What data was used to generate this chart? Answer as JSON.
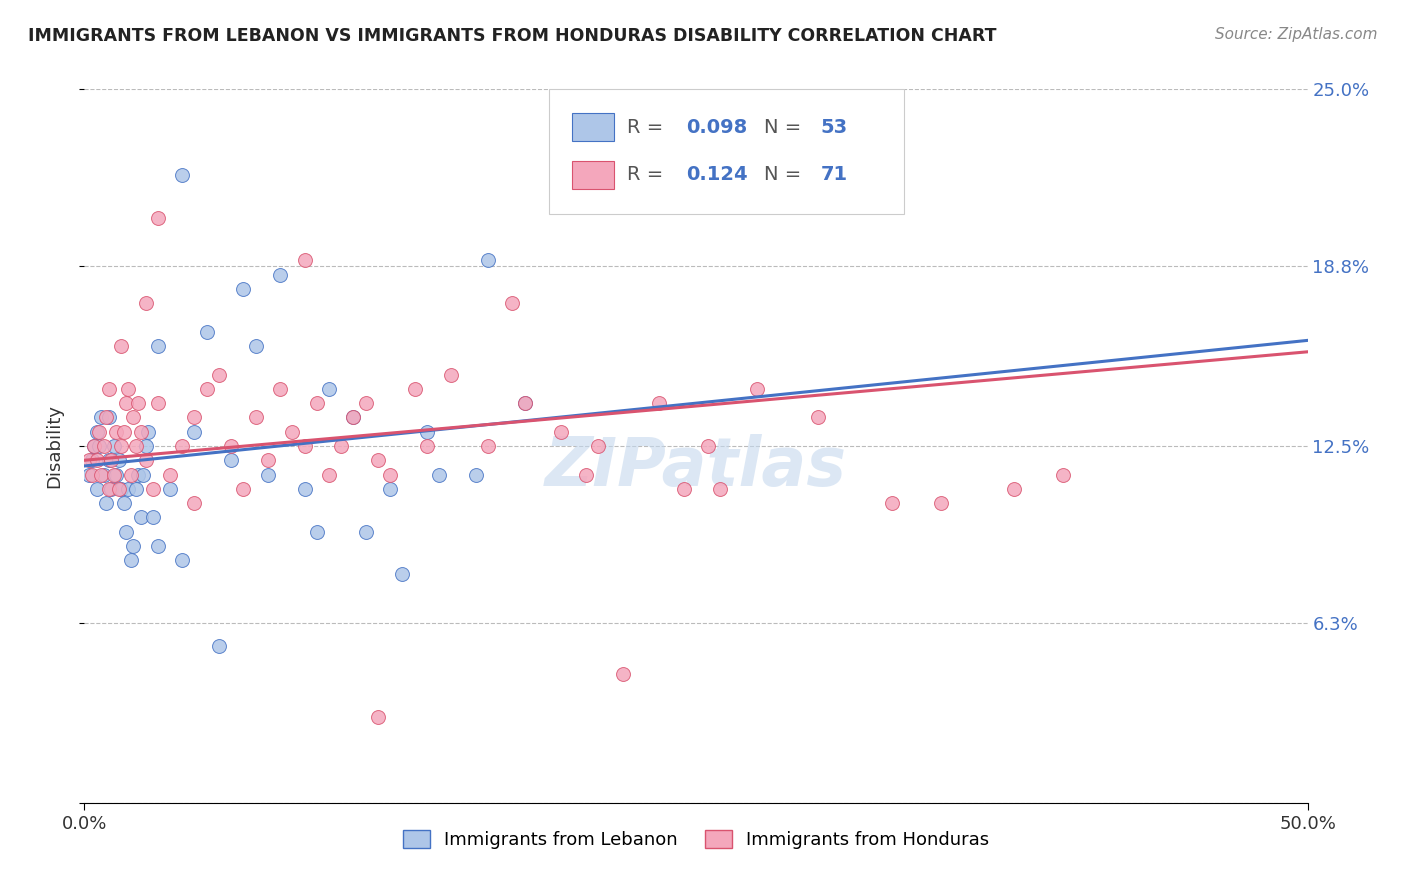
{
  "title": "IMMIGRANTS FROM LEBANON VS IMMIGRANTS FROM HONDURAS DISABILITY CORRELATION CHART",
  "source": "Source: ZipAtlas.com",
  "ylabel": "Disability",
  "xlim": [
    0.0,
    50.0
  ],
  "ylim": [
    0.0,
    25.0
  ],
  "yticks": [
    0.0,
    6.3,
    12.5,
    18.8,
    25.0
  ],
  "ytick_labels": [
    "",
    "6.3%",
    "12.5%",
    "18.8%",
    "25.0%"
  ],
  "legend_label1": "Immigrants from Lebanon",
  "legend_label2": "Immigrants from Honduras",
  "R1": 0.098,
  "N1": 53,
  "R2": 0.124,
  "N2": 71,
  "color1": "#aec6e8",
  "color2": "#f4a7bc",
  "line_color1": "#4472c4",
  "line_color2": "#d9536f",
  "watermark": "ZIPatlas",
  "lebanon_x": [
    0.2,
    0.3,
    0.4,
    0.5,
    0.5,
    0.6,
    0.7,
    0.8,
    0.9,
    1.0,
    1.0,
    1.1,
    1.2,
    1.3,
    1.4,
    1.5,
    1.6,
    1.7,
    1.8,
    1.9,
    2.0,
    2.1,
    2.2,
    2.3,
    2.4,
    2.5,
    2.6,
    2.8,
    3.0,
    3.5,
    4.0,
    4.5,
    5.5,
    6.0,
    7.5,
    8.0,
    9.5,
    10.0,
    11.5,
    12.5,
    14.0,
    16.5,
    3.0,
    4.0,
    5.0,
    6.5,
    7.0,
    9.0,
    11.0,
    13.0,
    14.5,
    16.0,
    18.0
  ],
  "lebanon_y": [
    11.5,
    12.0,
    12.5,
    11.0,
    13.0,
    12.5,
    13.5,
    11.5,
    10.5,
    12.0,
    13.5,
    11.0,
    12.5,
    11.5,
    12.0,
    11.0,
    10.5,
    9.5,
    11.0,
    8.5,
    9.0,
    11.0,
    11.5,
    10.0,
    11.5,
    12.5,
    13.0,
    10.0,
    9.0,
    11.0,
    8.5,
    13.0,
    5.5,
    12.0,
    11.5,
    18.5,
    9.5,
    14.5,
    9.5,
    11.0,
    13.0,
    19.0,
    16.0,
    22.0,
    16.5,
    18.0,
    16.0,
    11.0,
    13.5,
    8.0,
    11.5,
    11.5,
    14.0
  ],
  "honduras_x": [
    0.2,
    0.3,
    0.4,
    0.5,
    0.6,
    0.7,
    0.8,
    0.9,
    1.0,
    1.0,
    1.1,
    1.2,
    1.3,
    1.4,
    1.5,
    1.6,
    1.7,
    1.8,
    1.9,
    2.0,
    2.1,
    2.2,
    2.3,
    2.5,
    2.8,
    3.0,
    3.5,
    4.0,
    4.5,
    5.0,
    5.5,
    6.0,
    6.5,
    7.0,
    7.5,
    8.0,
    8.5,
    9.0,
    9.5,
    10.0,
    10.5,
    11.0,
    11.5,
    12.0,
    12.5,
    13.5,
    14.0,
    15.0,
    16.5,
    18.0,
    19.5,
    20.5,
    21.0,
    23.5,
    24.5,
    25.5,
    27.5,
    30.0,
    35.0,
    38.0,
    40.0,
    9.0,
    17.5,
    3.0,
    1.5,
    2.5,
    12.0,
    22.0,
    26.0,
    4.5,
    33.0
  ],
  "honduras_y": [
    12.0,
    11.5,
    12.5,
    12.0,
    13.0,
    11.5,
    12.5,
    13.5,
    11.0,
    14.5,
    12.0,
    11.5,
    13.0,
    11.0,
    12.5,
    13.0,
    14.0,
    14.5,
    11.5,
    13.5,
    12.5,
    14.0,
    13.0,
    12.0,
    11.0,
    14.0,
    11.5,
    12.5,
    13.5,
    14.5,
    15.0,
    12.5,
    11.0,
    13.5,
    12.0,
    14.5,
    13.0,
    12.5,
    14.0,
    11.5,
    12.5,
    13.5,
    14.0,
    12.0,
    11.5,
    14.5,
    12.5,
    15.0,
    12.5,
    14.0,
    13.0,
    11.5,
    12.5,
    14.0,
    11.0,
    12.5,
    14.5,
    13.5,
    10.5,
    11.0,
    11.5,
    19.0,
    17.5,
    20.5,
    16.0,
    17.5,
    3.0,
    4.5,
    11.0,
    10.5,
    10.5
  ]
}
